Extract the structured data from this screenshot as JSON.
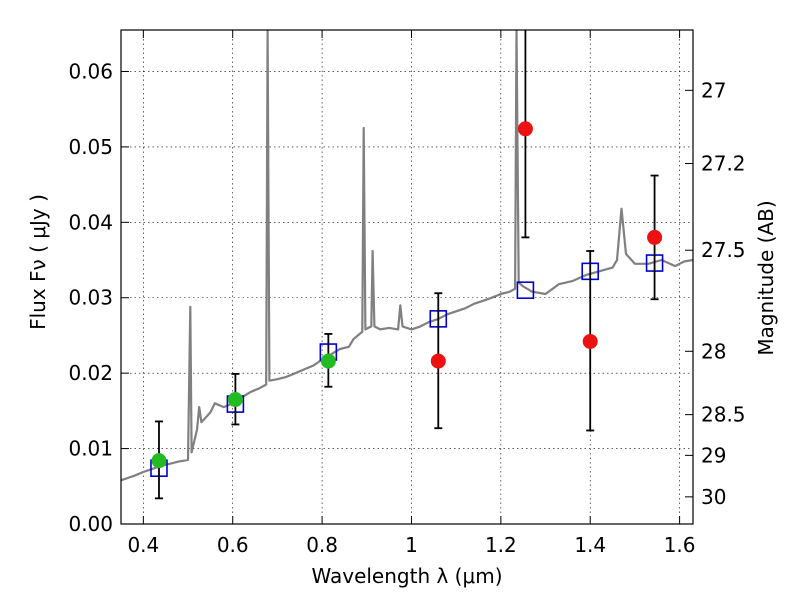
{
  "chart_data": {
    "type": "scatter",
    "xlabel": "Wavelength  λ (μm)",
    "ylabel": "Flux  Fν  ( μJy )",
    "ylabel_right": "Magnitude (AB)",
    "xlim": [
      0.35,
      1.63
    ],
    "ylim": [
      0.0,
      0.0655
    ],
    "x_ticks": [
      0.4,
      0.6,
      0.8,
      1.0,
      1.2,
      1.4,
      1.6
    ],
    "x_tick_labels": [
      "0.4",
      "0.6",
      "0.8",
      "1",
      "1.2",
      "1.4",
      "1.6"
    ],
    "y_ticks": [
      0.0,
      0.01,
      0.02,
      0.03,
      0.04,
      0.05,
      0.06
    ],
    "y_tick_labels": [
      "0.00",
      "0.01",
      "0.02",
      "0.03",
      "0.04",
      "0.05",
      "0.06"
    ],
    "right_ticks": [
      {
        "label": "27",
        "flux": 0.0575
      },
      {
        "label": "27.2",
        "flux": 0.0478
      },
      {
        "label": "27.5",
        "flux": 0.0363
      },
      {
        "label": "28",
        "flux": 0.0229
      },
      {
        "label": "28.5",
        "flux": 0.0145
      },
      {
        "label": "29",
        "flux": 0.0091
      },
      {
        "label": "30",
        "flux": 0.0036
      }
    ],
    "grid": true,
    "series": [
      {
        "kind": "model_spectrum",
        "style": "line",
        "color": "#808080",
        "points": [
          [
            0.35,
            0.0058
          ],
          [
            0.38,
            0.0064
          ],
          [
            0.4,
            0.0069
          ],
          [
            0.42,
            0.0073
          ],
          [
            0.44,
            0.0077
          ],
          [
            0.46,
            0.008
          ],
          [
            0.48,
            0.0083
          ],
          [
            0.5,
            0.0085
          ],
          [
            0.505,
            0.0288
          ],
          [
            0.508,
            0.0095
          ],
          [
            0.52,
            0.0125
          ],
          [
            0.525,
            0.0155
          ],
          [
            0.53,
            0.0135
          ],
          [
            0.55,
            0.0148
          ],
          [
            0.56,
            0.016
          ],
          [
            0.58,
            0.0155
          ],
          [
            0.6,
            0.016
          ],
          [
            0.62,
            0.0168
          ],
          [
            0.64,
            0.0175
          ],
          [
            0.66,
            0.018
          ],
          [
            0.675,
            0.0185
          ],
          [
            0.678,
            0.0655
          ],
          [
            0.682,
            0.019
          ],
          [
            0.7,
            0.0192
          ],
          [
            0.72,
            0.0195
          ],
          [
            0.74,
            0.02
          ],
          [
            0.76,
            0.0205
          ],
          [
            0.78,
            0.021
          ],
          [
            0.8,
            0.0218
          ],
          [
            0.82,
            0.0225
          ],
          [
            0.84,
            0.0232
          ],
          [
            0.86,
            0.0235
          ],
          [
            0.87,
            0.0245
          ],
          [
            0.88,
            0.025
          ],
          [
            0.89,
            0.0255
          ],
          [
            0.893,
            0.0525
          ],
          [
            0.897,
            0.0258
          ],
          [
            0.91,
            0.0262
          ],
          [
            0.913,
            0.0362
          ],
          [
            0.917,
            0.0262
          ],
          [
            0.93,
            0.0258
          ],
          [
            0.95,
            0.026
          ],
          [
            0.97,
            0.0258
          ],
          [
            0.975,
            0.029
          ],
          [
            0.98,
            0.0262
          ],
          [
            1.0,
            0.0258
          ],
          [
            1.02,
            0.0262
          ],
          [
            1.04,
            0.0268
          ],
          [
            1.06,
            0.0272
          ],
          [
            1.08,
            0.0278
          ],
          [
            1.1,
            0.0282
          ],
          [
            1.12,
            0.0286
          ],
          [
            1.14,
            0.0292
          ],
          [
            1.16,
            0.0296
          ],
          [
            1.18,
            0.03
          ],
          [
            1.2,
            0.0305
          ],
          [
            1.22,
            0.0308
          ],
          [
            1.232,
            0.0312
          ],
          [
            1.235,
            0.0655
          ],
          [
            1.24,
            0.032
          ],
          [
            1.25,
            0.0315
          ],
          [
            1.27,
            0.0308
          ],
          [
            1.3,
            0.0305
          ],
          [
            1.33,
            0.0318
          ],
          [
            1.36,
            0.0322
          ],
          [
            1.39,
            0.033
          ],
          [
            1.42,
            0.0335
          ],
          [
            1.45,
            0.034
          ],
          [
            1.46,
            0.035
          ],
          [
            1.47,
            0.0418
          ],
          [
            1.48,
            0.0358
          ],
          [
            1.5,
            0.0345
          ],
          [
            1.53,
            0.0345
          ],
          [
            1.56,
            0.035
          ],
          [
            1.59,
            0.0342
          ],
          [
            1.61,
            0.0348
          ],
          [
            1.63,
            0.035
          ]
        ]
      },
      {
        "kind": "model_band_flux",
        "style": "open_square",
        "color": "#0000cc",
        "points": [
          [
            0.435,
            0.0074
          ],
          [
            0.606,
            0.0159
          ],
          [
            0.814,
            0.0228
          ],
          [
            1.06,
            0.0272
          ],
          [
            1.255,
            0.031
          ],
          [
            1.4,
            0.0335
          ],
          [
            1.544,
            0.0346
          ]
        ]
      },
      {
        "kind": "detection",
        "style": "filled_circle",
        "color": "#22bb22",
        "points": [
          [
            0.435,
            0.0084,
            0.0034,
            0.0136
          ],
          [
            0.606,
            0.0165,
            0.0132,
            0.0199
          ],
          [
            0.814,
            0.0216,
            0.0182,
            0.0252
          ]
        ]
      },
      {
        "kind": "detection",
        "style": "filled_circle",
        "color": "#ee1111",
        "points": [
          [
            1.06,
            0.0216,
            0.0127,
            0.0306
          ],
          [
            1.255,
            0.0524,
            0.038,
            0.0668
          ],
          [
            1.4,
            0.0242,
            0.0124,
            0.0362
          ],
          [
            1.544,
            0.038,
            0.0298,
            0.0462
          ]
        ]
      }
    ]
  }
}
